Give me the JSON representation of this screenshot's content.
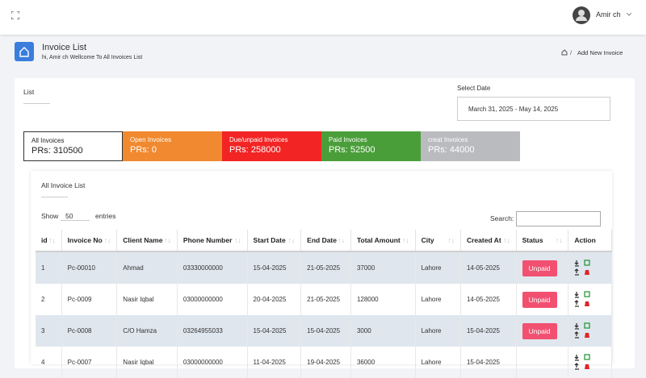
{
  "header": {
    "user": "Amir ch"
  },
  "page": {
    "title": "Invoice List",
    "subtitle": "hi, Amir ch Wellcome To All Invoices List",
    "breadcrumb": "Add New Invoice"
  },
  "card": {
    "title": "List",
    "date_label": "Select Date",
    "date_range": "March 31, 2025 - May 14, 2025"
  },
  "tiles": [
    {
      "label": "All Invoices",
      "amount": "PRs: 310500"
    },
    {
      "label": "Open Invoices",
      "amount": "PRs: 0"
    },
    {
      "label": "Due/unpaid Invoices",
      "amount": "PRs: 258000"
    },
    {
      "label": "Paid Invoices",
      "amount": "PRs: 52500"
    },
    {
      "label": "creat Invoices",
      "amount": "PRs: 44000"
    }
  ],
  "table": {
    "title": "All Invoice List",
    "show": "Show",
    "entries_count": "50",
    "entries": "entries",
    "search": "Search:",
    "columns": [
      "id",
      "Invoice No",
      "Client Name",
      "Phone Number",
      "Start Date",
      "End Date",
      "Total Amount",
      "City",
      "Created At",
      "Status",
      "Action"
    ],
    "rows": [
      [
        "1",
        "Pc-00010",
        "Ahmad",
        "03330000000",
        "15-04-2025",
        "21-05-2025",
        "37000",
        "Lahore",
        "14-05-2025",
        "Unpaid"
      ],
      [
        "2",
        "Pc-0009",
        "Nasir Iqbal",
        "03000000000",
        "20-04-2025",
        "21-05-2025",
        "128000",
        "Lahore",
        "14-05-2025",
        "Unpaid"
      ],
      [
        "3",
        "Pc-0008",
        "C/O Hamza",
        "03264955033",
        "15-04-2025",
        "15-04-2025",
        "3000",
        "Lahore",
        "15-04-2025",
        "Unpaid"
      ],
      [
        "4",
        "Pc-0007",
        "Nasir Iqbal",
        "03000000000",
        "11-04-2025",
        "19-04-2025",
        "36000",
        "Lahore",
        "15-04-2025",
        null
      ]
    ]
  }
}
